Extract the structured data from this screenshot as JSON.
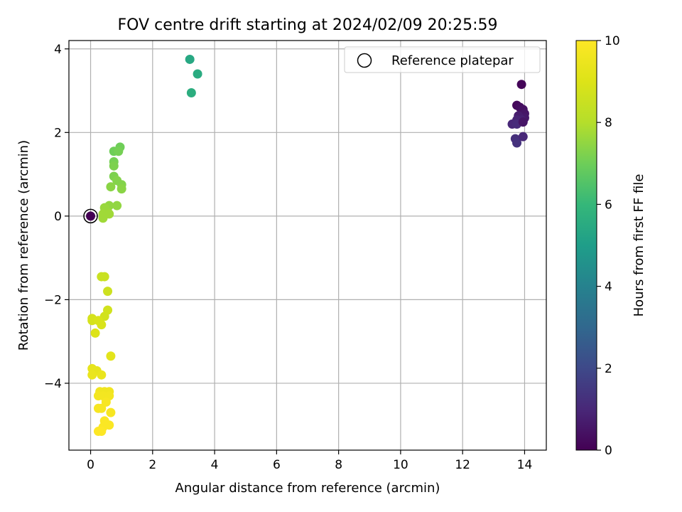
{
  "chart_data": {
    "type": "scatter",
    "title": "FOV centre drift starting at 2024/02/09 20:25:59",
    "xlabel": "Angular distance from reference (arcmin)",
    "ylabel": "Rotation from reference (arcmin)",
    "xlim": [
      -0.7,
      14.7
    ],
    "ylim": [
      -5.6,
      4.2
    ],
    "xticks": [
      0,
      2,
      4,
      6,
      8,
      10,
      12,
      14
    ],
    "yticks": [
      -4,
      -2,
      0,
      2,
      4
    ],
    "grid": true,
    "legend": {
      "placement": "top-right",
      "entries": [
        "Reference platepar"
      ]
    },
    "colorbar": {
      "label": "Hours from first FF file",
      "range": [
        0,
        10
      ],
      "ticks": [
        0,
        2,
        4,
        6,
        8,
        10
      ],
      "colormap": "viridis"
    },
    "reference_point": {
      "x": 0,
      "y": 0,
      "hours": 0
    },
    "points": [
      {
        "x": 13.9,
        "y": 3.15,
        "h": 0.1
      },
      {
        "x": 13.75,
        "y": 2.65,
        "h": 0.2
      },
      {
        "x": 13.85,
        "y": 2.6,
        "h": 0.3
      },
      {
        "x": 13.95,
        "y": 2.55,
        "h": 0.4
      },
      {
        "x": 14.0,
        "y": 2.45,
        "h": 0.5
      },
      {
        "x": 14.0,
        "y": 2.35,
        "h": 0.6
      },
      {
        "x": 13.8,
        "y": 2.4,
        "h": 0.7
      },
      {
        "x": 13.9,
        "y": 2.3,
        "h": 0.8
      },
      {
        "x": 13.75,
        "y": 2.3,
        "h": 0.9
      },
      {
        "x": 13.6,
        "y": 2.2,
        "h": 1.0
      },
      {
        "x": 13.75,
        "y": 2.2,
        "h": 1.1
      },
      {
        "x": 13.95,
        "y": 2.25,
        "h": 0.5
      },
      {
        "x": 13.7,
        "y": 1.85,
        "h": 1.2
      },
      {
        "x": 13.75,
        "y": 1.75,
        "h": 1.3
      },
      {
        "x": 13.95,
        "y": 1.9,
        "h": 1.0
      },
      {
        "x": 3.2,
        "y": 3.75,
        "h": 5.4
      },
      {
        "x": 3.45,
        "y": 3.4,
        "h": 5.5
      },
      {
        "x": 3.25,
        "y": 2.95,
        "h": 5.6
      },
      {
        "x": 0.95,
        "y": 1.65,
        "h": 7.0
      },
      {
        "x": 0.75,
        "y": 1.55,
        "h": 7.0
      },
      {
        "x": 0.9,
        "y": 1.55,
        "h": 7.1
      },
      {
        "x": 0.75,
        "y": 1.3,
        "h": 7.1
      },
      {
        "x": 0.75,
        "y": 1.2,
        "h": 7.2
      },
      {
        "x": 0.75,
        "y": 0.95,
        "h": 7.2
      },
      {
        "x": 0.85,
        "y": 0.85,
        "h": 7.3
      },
      {
        "x": 1.0,
        "y": 0.75,
        "h": 7.3
      },
      {
        "x": 1.0,
        "y": 0.65,
        "h": 7.4
      },
      {
        "x": 0.65,
        "y": 0.7,
        "h": 7.4
      },
      {
        "x": 0.85,
        "y": 0.25,
        "h": 7.5
      },
      {
        "x": 0.6,
        "y": 0.25,
        "h": 7.5
      },
      {
        "x": 0.45,
        "y": 0.2,
        "h": 7.6
      },
      {
        "x": 0.55,
        "y": 0.1,
        "h": 7.6
      },
      {
        "x": 0.4,
        "y": 0.05,
        "h": 7.7
      },
      {
        "x": 0.6,
        "y": 0.05,
        "h": 7.7
      },
      {
        "x": 0.4,
        "y": -0.05,
        "h": 7.7
      },
      {
        "x": 0.35,
        "y": -1.45,
        "h": 8.5
      },
      {
        "x": 0.45,
        "y": -1.45,
        "h": 8.5
      },
      {
        "x": 0.55,
        "y": -1.8,
        "h": 8.6
      },
      {
        "x": 0.55,
        "y": -2.25,
        "h": 8.7
      },
      {
        "x": 0.45,
        "y": -2.4,
        "h": 8.7
      },
      {
        "x": 0.05,
        "y": -2.45,
        "h": 8.8
      },
      {
        "x": 0.05,
        "y": -2.5,
        "h": 8.8
      },
      {
        "x": 0.25,
        "y": -2.5,
        "h": 8.9
      },
      {
        "x": 0.35,
        "y": -2.6,
        "h": 8.9
      },
      {
        "x": 0.15,
        "y": -2.8,
        "h": 9.0
      },
      {
        "x": 0.65,
        "y": -3.35,
        "h": 9.2
      },
      {
        "x": 0.05,
        "y": -3.65,
        "h": 9.3
      },
      {
        "x": 0.2,
        "y": -3.7,
        "h": 9.3
      },
      {
        "x": 0.05,
        "y": -3.8,
        "h": 9.4
      },
      {
        "x": 0.35,
        "y": -3.8,
        "h": 9.4
      },
      {
        "x": 0.3,
        "y": -4.2,
        "h": 9.6
      },
      {
        "x": 0.45,
        "y": -4.2,
        "h": 9.6
      },
      {
        "x": 0.6,
        "y": -4.2,
        "h": 9.6
      },
      {
        "x": 0.25,
        "y": -4.3,
        "h": 9.7
      },
      {
        "x": 0.4,
        "y": -4.3,
        "h": 9.7
      },
      {
        "x": 0.6,
        "y": -4.3,
        "h": 9.7
      },
      {
        "x": 0.5,
        "y": -4.45,
        "h": 9.8
      },
      {
        "x": 0.25,
        "y": -4.6,
        "h": 9.8
      },
      {
        "x": 0.35,
        "y": -4.6,
        "h": 9.8
      },
      {
        "x": 0.65,
        "y": -4.7,
        "h": 9.8
      },
      {
        "x": 0.45,
        "y": -4.9,
        "h": 9.9
      },
      {
        "x": 0.6,
        "y": -5.0,
        "h": 9.9
      },
      {
        "x": 0.4,
        "y": -5.05,
        "h": 9.9
      },
      {
        "x": 0.25,
        "y": -5.15,
        "h": 10.0
      },
      {
        "x": 0.35,
        "y": -5.15,
        "h": 10.0
      }
    ]
  }
}
